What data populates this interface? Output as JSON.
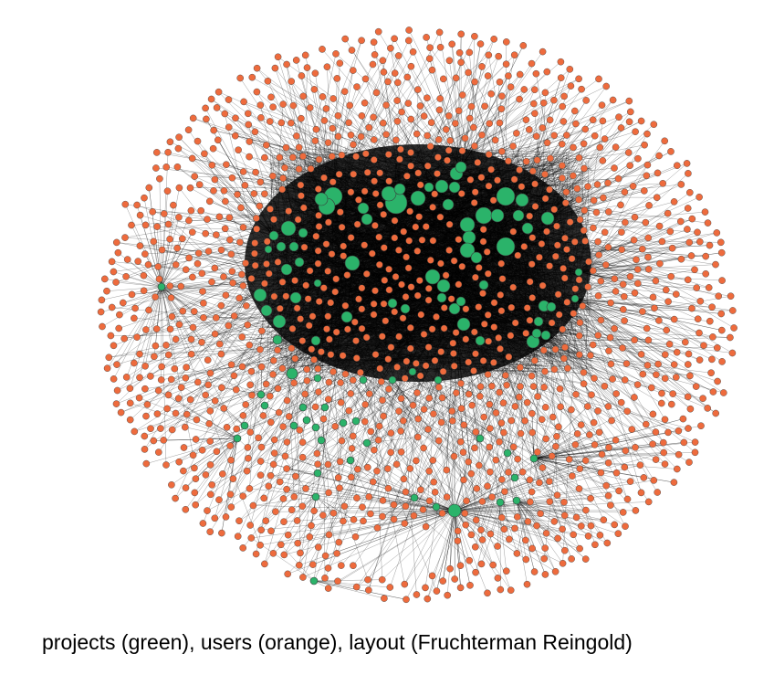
{
  "caption": "projects (green), users (orange), layout (Fruchterman Reingold)",
  "colors": {
    "project_node": "#2bb36a",
    "user_node": "#ee6b3d",
    "node_stroke": "#3a3a3a",
    "edge": "#000000",
    "background": "#ffffff"
  }
}
